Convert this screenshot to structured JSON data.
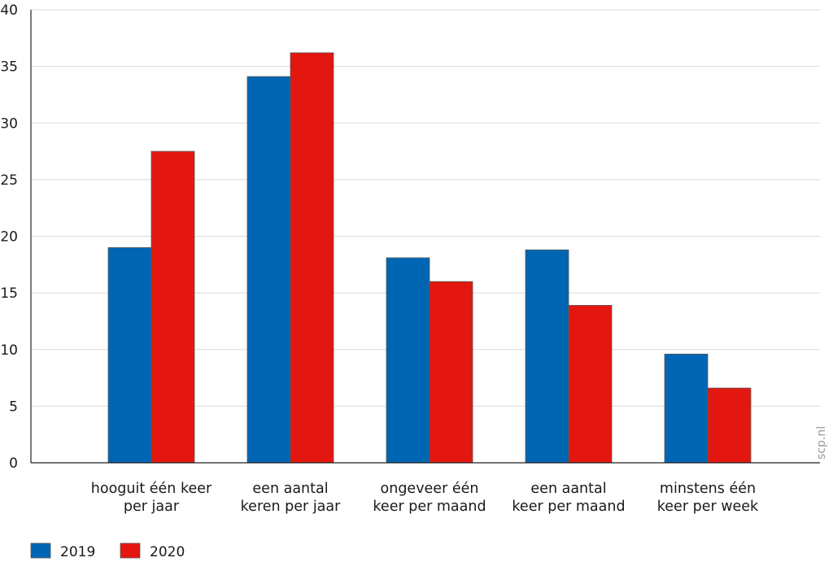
{
  "chart_data": {
    "type": "bar",
    "categories": [
      [
        "hooguit één keer",
        "per jaar"
      ],
      [
        "een aantal",
        "keren per jaar"
      ],
      [
        "ongeveer één",
        "keer per maand"
      ],
      [
        "een aantal",
        "keer per maand"
      ],
      [
        "minstens één",
        "keer per week"
      ]
    ],
    "series": [
      {
        "name": "2019",
        "values": [
          19.0,
          34.1,
          18.1,
          18.8,
          9.6
        ],
        "color": "#0066b3"
      },
      {
        "name": "2020",
        "values": [
          27.5,
          36.2,
          16.0,
          13.9,
          6.6
        ],
        "color": "#e3170f"
      }
    ],
    "ylim": [
      0,
      40
    ],
    "yticks": [
      0,
      5,
      10,
      15,
      20,
      25,
      30,
      35,
      40
    ],
    "grid": true,
    "legend_position": "bottom-left"
  },
  "watermark": "scp.nl"
}
